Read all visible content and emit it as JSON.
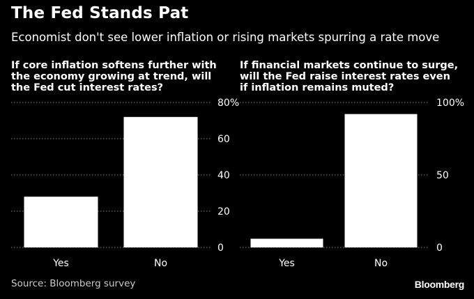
{
  "title": "The Fed Stands Pat",
  "subtitle": "Economist don't see lower inflation or rising markets spurring a rate move",
  "source": "Source: Bloomberg survey",
  "brand": "Bloomberg",
  "colors": {
    "background": "#000000",
    "bar": "#ffffff",
    "grid": "#8a8a8a",
    "text": "#ffffff"
  },
  "chart_data": [
    {
      "type": "bar",
      "title": "If core inflation softens further with\nthe economy growing at trend, will\nthe Fed cut interest rates?",
      "categories": [
        "Yes",
        "No"
      ],
      "values": [
        28,
        72
      ],
      "ylim": [
        0,
        80
      ],
      "yticks": [
        0,
        20,
        40,
        60,
        80
      ],
      "ytick_labels": [
        "0",
        "20",
        "40",
        "60",
        "80%"
      ],
      "grid": true,
      "xlabel": "",
      "ylabel": ""
    },
    {
      "type": "bar",
      "title": "If financial markets continue to surge,\nwill the Fed raise interest rates even\nif inflation remains muted?",
      "categories": [
        "Yes",
        "No"
      ],
      "values": [
        6,
        92
      ],
      "ylim": [
        0,
        100
      ],
      "yticks": [
        0,
        50,
        100
      ],
      "ytick_labels": [
        "0",
        "50",
        "100%"
      ],
      "grid": true,
      "xlabel": "",
      "ylabel": ""
    }
  ]
}
